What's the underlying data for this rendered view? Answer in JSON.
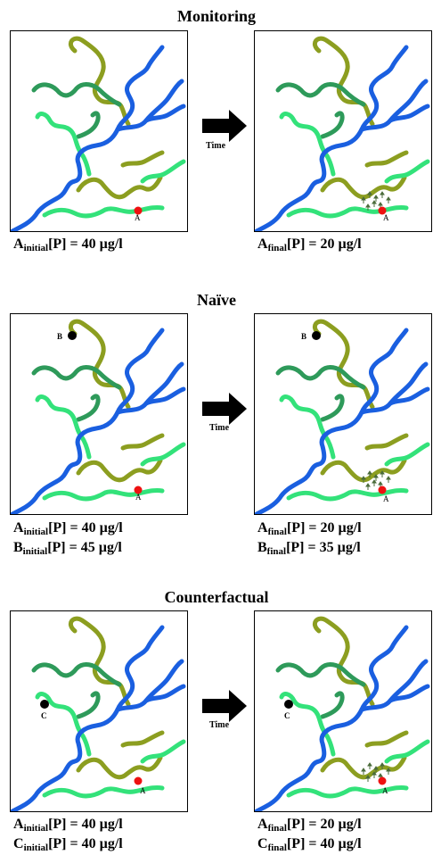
{
  "sections": [
    {
      "title": "Monitoring",
      "time_label": "Time",
      "left": {
        "points": [
          {
            "label": "A",
            "color": "red"
          }
        ],
        "captions": [
          {
            "letter": "A",
            "sub": "initial",
            "text": "[P] = 40 µg/l"
          }
        ]
      },
      "right": {
        "points": [
          {
            "label": "A",
            "color": "red"
          }
        ],
        "captions": [
          {
            "letter": "A",
            "sub": "final",
            "text": "[P] = 20 µg/l"
          }
        ]
      }
    },
    {
      "title": "Naïve",
      "time_label": "Time",
      "left": {
        "points": [
          {
            "label": "A",
            "color": "red"
          },
          {
            "label": "B",
            "color": "black"
          }
        ],
        "captions": [
          {
            "letter": "A",
            "sub": "initial",
            "text": "[P] = 40 µg/l"
          },
          {
            "letter": "B",
            "sub": "initial",
            "text": "[P] = 45 µg/l"
          }
        ]
      },
      "right": {
        "points": [
          {
            "label": "A",
            "color": "red"
          },
          {
            "label": "B",
            "color": "black"
          }
        ],
        "captions": [
          {
            "letter": "A",
            "sub": "final",
            "text": "[P] = 20 µg/l"
          },
          {
            "letter": "B",
            "sub": "final",
            "text": "[P] = 35 µg/l"
          }
        ]
      }
    },
    {
      "title": "Counterfactual",
      "time_label": "Time",
      "left": {
        "points": [
          {
            "label": "A",
            "color": "red"
          },
          {
            "label": "C",
            "color": "black"
          }
        ],
        "captions": [
          {
            "letter": "A",
            "sub": "initial",
            "text": "[P] = 40 µg/l"
          },
          {
            "letter": "C",
            "sub": "initial",
            "text": "[P] = 40 µg/l"
          }
        ]
      },
      "right": {
        "points": [
          {
            "label": "A",
            "color": "red"
          },
          {
            "label": "C",
            "color": "black"
          }
        ],
        "captions": [
          {
            "letter": "A",
            "sub": "final",
            "text": "[P] = 20 µg/l"
          },
          {
            "letter": "C",
            "sub": "final",
            "text": "[P] = 40 µg/l"
          }
        ]
      }
    }
  ],
  "colors": {
    "main_river": "#1a5fe0",
    "olive_branch": "#8c9e20",
    "dark_green_branch": "#2e9a5a",
    "light_green_branch": "#33e27a",
    "site_a": "#ee1111",
    "site_other": "#000000",
    "plant": "#4a6b3a"
  }
}
